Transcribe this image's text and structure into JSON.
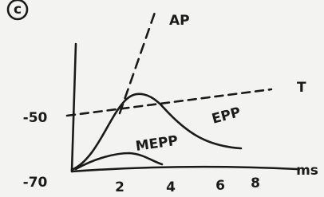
{
  "panel": "c",
  "y_labels": [
    "-50",
    "-70"
  ],
  "x_labels": [
    "2",
    "4",
    "6",
    "8"
  ],
  "x_unit": "ms",
  "curves": {
    "action_potential": "AP",
    "threshold": "T",
    "end_plate_potential": "EPP",
    "miniature": "MEPP"
  }
}
